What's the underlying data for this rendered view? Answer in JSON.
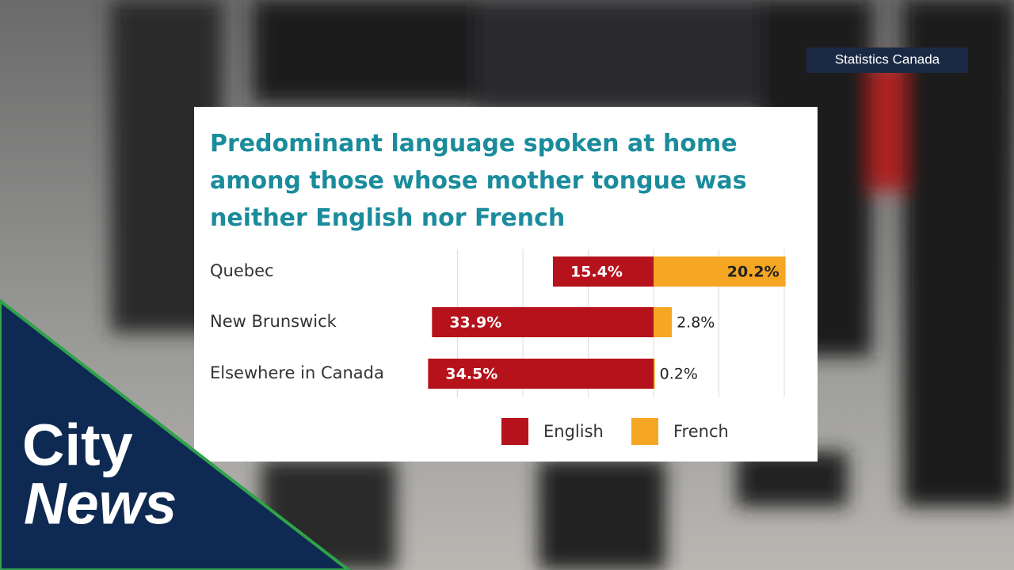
{
  "source": "Statistics Canada",
  "logo": {
    "line1": "City",
    "line2": "News"
  },
  "chart_data": {
    "type": "diverging-bar",
    "title": "Predominant language spoken at home among those whose mother tongue was neither English nor French",
    "categories": [
      "Quebec",
      "New Brunswick",
      "Elsewhere in Canada"
    ],
    "series": [
      {
        "name": "English",
        "color": "#b5121b",
        "values": [
          15.4,
          33.9,
          34.5
        ],
        "value_labels": [
          "15.4%",
          "33.9%",
          "34.5%"
        ]
      },
      {
        "name": "French",
        "color": "#f5a623",
        "values": [
          20.2,
          2.8,
          0.2
        ],
        "value_labels": [
          "20.2%",
          "2.8%",
          "0.2%"
        ]
      }
    ],
    "xlim": [
      -35,
      20
    ],
    "xticks": [
      -30,
      -20,
      -10,
      0,
      10,
      20
    ],
    "grid": true
  }
}
